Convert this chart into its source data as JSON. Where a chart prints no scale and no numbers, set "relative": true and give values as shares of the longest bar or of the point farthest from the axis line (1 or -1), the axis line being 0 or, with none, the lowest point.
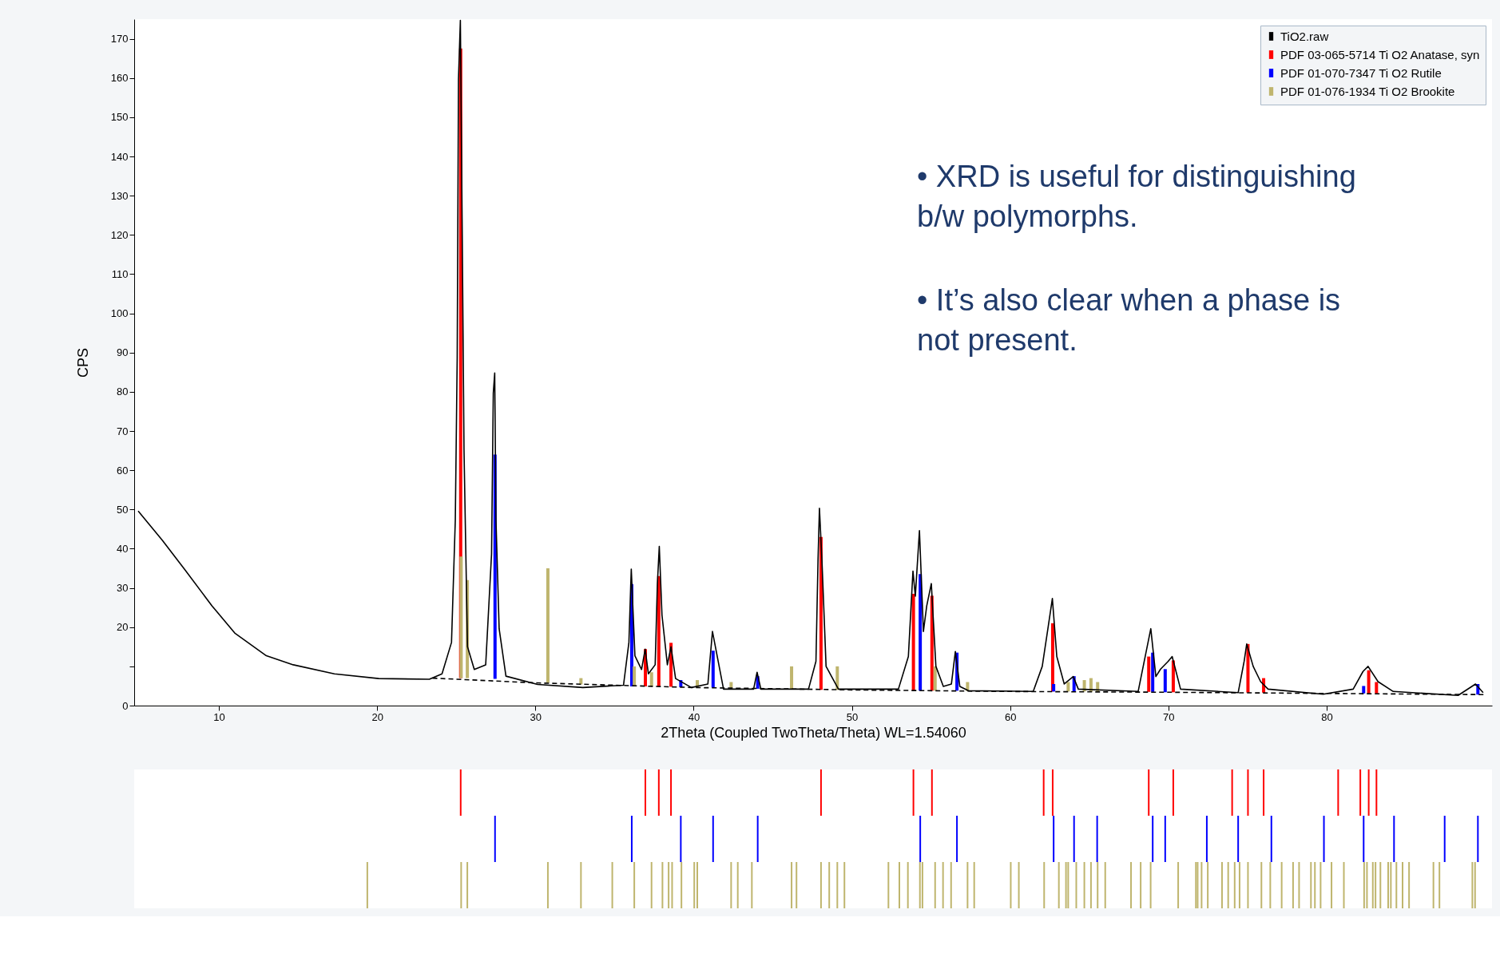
{
  "chart_data": [
    {
      "type": "line",
      "xlabel": "2Theta (Coupled TwoTheta/Theta) WL=1.54060",
      "ylabel": "CPS",
      "xlim": [
        4.9,
        90.2
      ],
      "ylim": [
        0,
        175
      ],
      "xticks": [
        10,
        20,
        30,
        40,
        50,
        60,
        70,
        80
      ],
      "yticks": [
        0,
        {
          "value": 10,
          "label": null
        },
        20,
        30,
        40,
        50,
        60,
        70,
        80,
        90,
        100,
        110,
        120,
        130,
        140,
        150,
        160,
        170
      ],
      "legend": "top right",
      "line_style": "solid",
      "annotations": [
        "• XRD is useful for distinguishing\nb/w polymorphs.",
        "• It’s also clear when a phase is\nnot present."
      ],
      "series": [
        {
          "name": "TiO2.raw",
          "color": "#000000",
          "type": "line",
          "x": [
            4.9,
            6.43,
            7.86,
            9.57,
            11.0,
            13.0,
            14.7,
            17.3,
            20.1,
            23.3,
            24.1,
            24.7,
            24.94,
            25.06,
            25.14,
            25.26,
            25.37,
            25.49,
            25.71,
            26.14,
            26.86,
            27.23,
            27.34,
            27.43,
            27.51,
            27.71,
            28.14,
            30.14,
            33.0,
            35.57,
            35.91,
            36.06,
            36.29,
            36.71,
            36.94,
            37.14,
            37.57,
            37.71,
            37.83,
            38.0,
            38.34,
            38.57,
            38.86,
            39.86,
            40.9,
            41.19,
            41.89,
            43.79,
            44.01,
            44.25,
            47.26,
            47.73,
            47.86,
            47.95,
            48.11,
            48.37,
            49.15,
            52.94,
            53.57,
            53.86,
            54.01,
            54.27,
            54.52,
            54.73,
            55.02,
            55.31,
            55.78,
            56.29,
            56.54,
            56.82,
            57.36,
            61.46,
            62.03,
            62.41,
            62.67,
            62.95,
            63.42,
            63.99,
            64.31,
            68.09,
            68.6,
            68.89,
            69.21,
            69.51,
            69.99,
            70.24,
            70.77,
            74.41,
            74.79,
            74.95,
            75.36,
            75.83,
            76.3,
            79.78,
            81.68,
            82.3,
            82.62,
            83.25,
            84.21,
            88.31,
            89.41,
            89.89
          ],
          "values": [
            49.6,
            42.1,
            34.6,
            25.4,
            18.5,
            12.7,
            10.4,
            8.1,
            6.9,
            6.7,
            8.1,
            16.1,
            47.3,
            88.8,
            159.7,
            174.7,
            124,
            65.2,
            15,
            9.2,
            10.4,
            38.6,
            79.6,
            84.8,
            47.3,
            19.6,
            7.5,
            5.4,
            4.6,
            5.2,
            16.1,
            34.8,
            12.7,
            9.2,
            14.4,
            8.1,
            10.4,
            31.1,
            40.6,
            23.1,
            10.4,
            15,
            6.9,
            4.6,
            5.5,
            18.9,
            4.2,
            4.2,
            8.5,
            4.2,
            4.2,
            11.3,
            36.9,
            50.3,
            36.9,
            10,
            4.2,
            4.2,
            12.5,
            34.3,
            27.9,
            44.6,
            18.9,
            25.4,
            31.1,
            10,
            4.9,
            5.5,
            13.8,
            4.9,
            3.8,
            3.6,
            10,
            20.2,
            27.3,
            12.5,
            5.5,
            7.4,
            4.2,
            3.6,
            13.8,
            19.6,
            7.4,
            9.3,
            11.3,
            12.5,
            4.2,
            3.3,
            11.3,
            15.7,
            10,
            6.1,
            4.2,
            2.9,
            4.2,
            8.7,
            10,
            6.1,
            3.6,
            2.6,
            5.5,
            3.3
          ]
        },
        {
          "color": "#000000",
          "type": "line",
          "line_style": "dashed",
          "x": [
            23.5,
            30,
            40,
            50,
            60,
            70,
            80,
            90
          ],
          "values": [
            7.0,
            5.8,
            4.6,
            4.0,
            3.6,
            3.4,
            3.1,
            2.8
          ]
        },
        {
          "name": "PDF 03-065-5714 Ti O2 Anatase, syn",
          "color": "#ff0000",
          "type": "bar",
          "x": [
            25.28,
            36.95,
            37.8,
            38.57,
            48.05,
            53.89,
            55.06,
            62.69,
            68.76,
            70.31,
            75.03,
            76.02,
            82.66,
            83.15
          ],
          "base": [
            7,
            4.9,
            4.8,
            4.8,
            4.0,
            3.8,
            3.8,
            3.6,
            3.5,
            3.4,
            3.3,
            3.3,
            3.1,
            3.1
          ],
          "values": [
            160.5,
            9.5,
            28.2,
            11.2,
            39,
            24.7,
            24.2,
            17.4,
            9,
            8.1,
            12.4,
            3.7,
            5.9,
            2.9
          ]
        },
        {
          "name": "PDF 01-070-7347 Ti O2 Rutile",
          "color": "#0000ff",
          "type": "bar",
          "x": [
            27.45,
            36.09,
            39.19,
            41.23,
            44.05,
            54.32,
            56.64,
            62.75,
            64.04,
            69.01,
            69.8,
            82.34,
            89.56
          ],
          "base": [
            6.8,
            4.9,
            4.7,
            4.6,
            4.3,
            3.8,
            3.8,
            3.6,
            3.6,
            3.5,
            3.4,
            3.1,
            2.8
          ],
          "values": [
            57.2,
            26.1,
            1.8,
            9.4,
            3.2,
            29.7,
            9.7,
            1.9,
            3.9,
            10,
            5.9,
            1.9,
            2.7
          ]
        },
        {
          "name": "PDF 01-076-1934 Ti O2 Brookite",
          "color": "#bfb56e",
          "type": "bar",
          "x": [
            25.31,
            25.7,
            30.79,
            32.88,
            36.25,
            37.34,
            40.23,
            42.37,
            46.19,
            49.08,
            55.26,
            57.31,
            63.67,
            64.69,
            65.11,
            65.53
          ],
          "base": [
            7,
            7,
            5.8,
            5.4,
            4.9,
            4.8,
            4.6,
            4.5,
            4.1,
            4.0,
            3.8,
            3.7,
            3.6,
            3.6,
            3.5,
            3.5
          ],
          "values": [
            31,
            25,
            29.2,
            1.6,
            5.1,
            3.7,
            1.9,
            1.5,
            5.9,
            6,
            6.2,
            2.3,
            2.4,
            2.9,
            3.5,
            2.5
          ]
        }
      ]
    },
    {
      "type": "bar",
      "relative": true,
      "tick_labels": false,
      "xlim": [
        4.9,
        90.2
      ],
      "series": [
        {
          "color": "#ff0000",
          "x": [
            25.28,
            36.95,
            37.8,
            38.57,
            48.05,
            53.89,
            55.06,
            62.12,
            62.69,
            68.76,
            70.31,
            74.03,
            75.03,
            76.02,
            80.73,
            82.13,
            82.66,
            83.15
          ],
          "values": [
            1,
            1,
            1,
            1,
            1,
            1,
            1,
            1,
            1,
            1,
            1,
            1,
            1,
            1,
            1,
            1,
            1,
            1
          ]
        }
      ]
    },
    {
      "type": "bar",
      "relative": true,
      "tick_labels": false,
      "xlim": [
        4.9,
        90.2
      ],
      "series": [
        {
          "color": "#0000ff",
          "x": [
            27.45,
            36.09,
            39.19,
            41.23,
            44.05,
            54.32,
            56.64,
            62.75,
            64.04,
            65.5,
            69.01,
            69.8,
            72.43,
            74.41,
            76.51,
            79.83,
            82.34,
            84.26,
            87.46,
            89.56
          ],
          "values": [
            1,
            1,
            1,
            1,
            1,
            1,
            1,
            1,
            1,
            1,
            1,
            1,
            1,
            1,
            1,
            1,
            1,
            1,
            1,
            1
          ]
        }
      ]
    },
    {
      "type": "bar",
      "relative": true,
      "tick_labels": false,
      "xlim": [
        4.9,
        90.2
      ],
      "series": [
        {
          "color": "#bfb56e",
          "x": [
            19.38,
            25.31,
            25.7,
            30.79,
            32.88,
            34.86,
            36.25,
            37.34,
            38.03,
            38.42,
            38.64,
            39.23,
            40.04,
            40.23,
            42.37,
            42.79,
            43.68,
            46.19,
            46.5,
            48.05,
            48.57,
            49.08,
            49.53,
            52.31,
            53.0,
            53.54,
            54.3,
            54.46,
            55.26,
            55.76,
            56.27,
            57.31,
            57.73,
            60.04,
            60.55,
            62.15,
            63.08,
            63.53,
            63.67,
            64.18,
            64.69,
            65.11,
            65.53,
            66.01,
            67.64,
            68.25,
            68.88,
            70.62,
            71.74,
            71.85,
            72.1,
            72.49,
            73.39,
            73.78,
            74.19,
            74.5,
            75.03,
            75.88,
            76.44,
            77.16,
            77.88,
            78.26,
            79.01,
            79.26,
            79.62,
            80.31,
            81.09,
            82.37,
            82.55,
            82.92,
            83.09,
            83.4,
            83.89,
            84.06,
            84.41,
            84.8,
            85.21,
            86.75,
            87.13,
            89.21,
            89.38
          ],
          "values": [
            1,
            1,
            1,
            1,
            1,
            1,
            1,
            1,
            1,
            1,
            1,
            1,
            1,
            1,
            1,
            1,
            1,
            1,
            1,
            1,
            1,
            1,
            1,
            1,
            1,
            1,
            1,
            1,
            1,
            1,
            1,
            1,
            1,
            1,
            1,
            1,
            1,
            1,
            1,
            1,
            1,
            1,
            1,
            1,
            1,
            1,
            1,
            1,
            1,
            1,
            1,
            1,
            1,
            1,
            1,
            1,
            1,
            1,
            1,
            1,
            1,
            1,
            1,
            1,
            1,
            1,
            1,
            1,
            1,
            1,
            1,
            1,
            1,
            1,
            1,
            1,
            1,
            1,
            1,
            1,
            1
          ]
        }
      ]
    }
  ]
}
